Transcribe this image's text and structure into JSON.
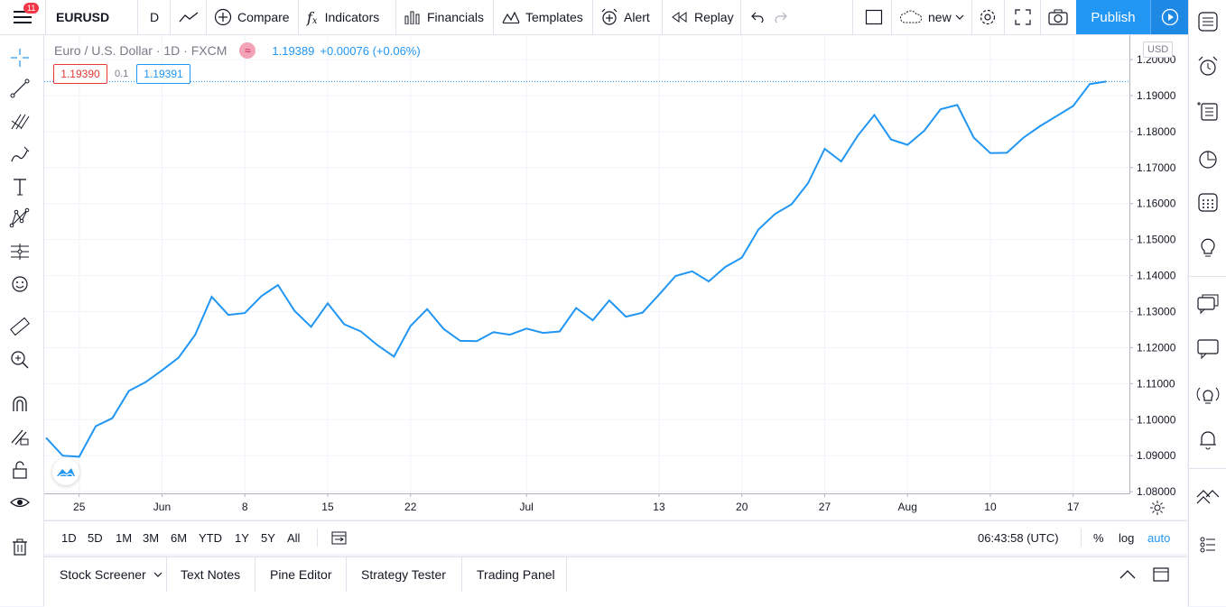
{
  "topbar": {
    "notif_count": "11",
    "symbol": "EURUSD",
    "interval": "D",
    "compare": "Compare",
    "indicators": "Indicators",
    "financials": "Financials",
    "templates": "Templates",
    "alert": "Alert",
    "replay": "Replay",
    "layout_name": "new",
    "publish": "Publish"
  },
  "legend": {
    "title": "Euro / U.S. Dollar · 1D · FXCM",
    "price": "1.19389",
    "change": "+0.00076 (+0.06%)",
    "bid": "1.19390",
    "spread": "0.1",
    "ask": "1.19391"
  },
  "axis": {
    "currency": "USD",
    "y_ticks": [
      "1.20000",
      "1.19000",
      "1.18000",
      "1.17000",
      "1.16000",
      "1.15000",
      "1.14000",
      "1.13000",
      "1.12000",
      "1.11000",
      "1.10000",
      "1.09000",
      "1.08000"
    ],
    "x_ticks": [
      "25",
      "Jun",
      "8",
      "15",
      "22",
      "Jul",
      "13",
      "20",
      "27",
      "Aug",
      "10",
      "17"
    ]
  },
  "chart_data": {
    "type": "line",
    "title": "Euro / U.S. Dollar · 1D · FXCM",
    "ylim": [
      1.08,
      1.2
    ],
    "series": [
      {
        "values": [
          1.095,
          1.09,
          1.0897,
          1.0982,
          1.1004,
          1.108,
          1.1104,
          1.1137,
          1.1172,
          1.1236,
          1.1341,
          1.1291,
          1.1296,
          1.1343,
          1.1374,
          1.1302,
          1.1258,
          1.1323,
          1.1265,
          1.1245,
          1.1207,
          1.1175,
          1.126,
          1.1307,
          1.1252,
          1.1219,
          1.1218,
          1.1243,
          1.1236,
          1.1253,
          1.1241,
          1.1245,
          1.131,
          1.1276,
          1.1331,
          1.1286,
          1.1297,
          1.1347,
          1.1399,
          1.1412,
          1.1384,
          1.1424,
          1.145,
          1.1528,
          1.1571,
          1.1598,
          1.1657,
          1.1752,
          1.1717,
          1.1789,
          1.1846,
          1.1778,
          1.1763,
          1.1802,
          1.1862,
          1.1874,
          1.1783,
          1.174,
          1.1741,
          1.1783,
          1.1815,
          1.1843,
          1.1871,
          1.1932,
          1.1939
        ]
      }
    ],
    "last_price": 1.19389,
    "grid": true
  },
  "range": {
    "buttons": [
      "1D",
      "5D",
      "1M",
      "3M",
      "6M",
      "YTD",
      "1Y",
      "5Y",
      "All"
    ],
    "clock": "06:43:58 (UTC)",
    "percent": "%",
    "log": "log",
    "auto": "auto"
  },
  "panels": {
    "stock_screener": "Stock Screener",
    "text_notes": "Text Notes",
    "pine_editor": "Pine Editor",
    "strategy_tester": "Strategy Tester",
    "trading_panel": "Trading Panel"
  },
  "colors": {
    "accent": "#2196f3",
    "line": "#2196f3",
    "bid": "#e53935",
    "badge": "#f23645"
  }
}
